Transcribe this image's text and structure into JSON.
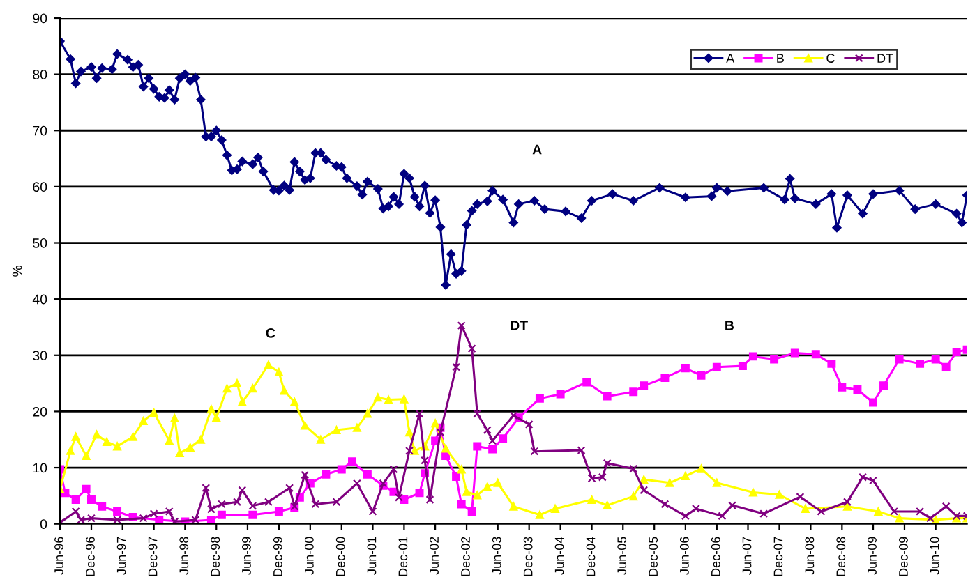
{
  "chart_data": {
    "type": "line",
    "ylabel": "%",
    "xlim": [
      "1996-06",
      "2010-12"
    ],
    "ylim": [
      0,
      90
    ],
    "yticks": [
      0,
      10,
      20,
      30,
      40,
      50,
      60,
      70,
      80,
      90
    ],
    "xticks": [
      {
        "value": "1996-06",
        "label": "Jun-96"
      },
      {
        "value": "1996-12",
        "label": "Dec-96"
      },
      {
        "value": "1997-06",
        "label": "Jun-97"
      },
      {
        "value": "1997-12",
        "label": "Dec-97"
      },
      {
        "value": "1998-06",
        "label": "Jun-98"
      },
      {
        "value": "1998-12",
        "label": "Dec-98"
      },
      {
        "value": "1999-06",
        "label": "Jun-99"
      },
      {
        "value": "1999-12",
        "label": "Dec-99"
      },
      {
        "value": "2000-06",
        "label": "Jun-00"
      },
      {
        "value": "2000-12",
        "label": "Dec-00"
      },
      {
        "value": "2001-06",
        "label": "Jun-01"
      },
      {
        "value": "2001-12",
        "label": "Dec-01"
      },
      {
        "value": "2002-06",
        "label": "Jun-02"
      },
      {
        "value": "2002-12",
        "label": "Dec-02"
      },
      {
        "value": "2003-06",
        "label": "Jun-03"
      },
      {
        "value": "2003-12",
        "label": "Dec-03"
      },
      {
        "value": "2004-06",
        "label": "Jun-04"
      },
      {
        "value": "2004-12",
        "label": "Dec-04"
      },
      {
        "value": "2005-06",
        "label": "Jun-05"
      },
      {
        "value": "2005-12",
        "label": "Dec-05"
      },
      {
        "value": "2006-06",
        "label": "Jun-06"
      },
      {
        "value": "2006-12",
        "label": "Dec-06"
      },
      {
        "value": "2007-06",
        "label": "Jun-07"
      },
      {
        "value": "2007-12",
        "label": "Dec-07"
      },
      {
        "value": "2008-06",
        "label": "Jun-08"
      },
      {
        "value": "2008-12",
        "label": "Dec-08"
      },
      {
        "value": "2009-06",
        "label": "Jun-09"
      },
      {
        "value": "2009-12",
        "label": "Dec-09"
      },
      {
        "value": "2010-06",
        "label": "Jun-10"
      }
    ],
    "grid": "y",
    "legend": "top right",
    "line_style": "solid",
    "annotations": [
      "A",
      "C",
      "DT",
      "B"
    ],
    "series": [
      {
        "name": "A",
        "color": "#000080",
        "marker": "diamond",
        "x": [
          "1996-06",
          "1996-08",
          "1996-09",
          "1996-10",
          "1996-12",
          "1997-01",
          "1997-02",
          "1997-04",
          "1997-05",
          "1997-07",
          "1997-08",
          "1997-09",
          "1997-10",
          "1997-11",
          "1997-12",
          "1998-01",
          "1998-02",
          "1998-03",
          "1998-04",
          "1998-05",
          "1998-06",
          "1998-07",
          "1998-08",
          "1998-09",
          "1998-10",
          "1998-11",
          "1998-12",
          "1999-01",
          "1999-02",
          "1999-03",
          "1999-04",
          "1999-05",
          "1999-07",
          "1999-08",
          "1999-09",
          "1999-11",
          "1999-12",
          "2000-01",
          "2000-02",
          "2000-03",
          "2000-04",
          "2000-05",
          "2000-06",
          "2000-07",
          "2000-08",
          "2000-09",
          "2000-11",
          "2000-12",
          "2001-01",
          "2001-03",
          "2001-04",
          "2001-05",
          "2001-07",
          "2001-08",
          "2001-09",
          "2001-10",
          "2001-11",
          "2001-12",
          "2002-01",
          "2002-02",
          "2002-03",
          "2002-04",
          "2002-05",
          "2002-06",
          "2002-07",
          "2002-08",
          "2002-09",
          "2002-10",
          "2002-11",
          "2002-12",
          "2003-01",
          "2003-02",
          "2003-04",
          "2003-05",
          "2003-07",
          "2003-09",
          "2003-10",
          "2004-01",
          "2004-03",
          "2004-07",
          "2004-10",
          "2004-12",
          "2005-04",
          "2005-08",
          "2006-01",
          "2006-06",
          "2006-11",
          "2006-12",
          "2007-02",
          "2007-09",
          "2008-01",
          "2008-02",
          "2008-03",
          "2008-07",
          "2008-10",
          "2008-11",
          "2009-01",
          "2009-04",
          "2009-06",
          "2009-11",
          "2010-02",
          "2010-06",
          "2010-10",
          "2010-11",
          "2010-12"
        ],
        "values": [
          85.9,
          82.7,
          78.4,
          80.5,
          81.3,
          79.3,
          81.1,
          80.9,
          83.6,
          82.6,
          81.3,
          81.7,
          77.8,
          79.3,
          77.4,
          76.0,
          75.8,
          77.2,
          75.5,
          79.3,
          80.0,
          78.8,
          79.4,
          75.5,
          68.9,
          68.9,
          70.0,
          68.3,
          65.6,
          62.9,
          63.1,
          64.5,
          64.0,
          65.2,
          62.7,
          59.4,
          59.3,
          60.2,
          59.4,
          64.4,
          62.7,
          61.2,
          61.5,
          66.0,
          66.0,
          64.8,
          63.7,
          63.5,
          61.5,
          60.1,
          58.6,
          60.9,
          59.6,
          56.1,
          56.5,
          58.2,
          56.9,
          62.3,
          61.5,
          58.2,
          56.5,
          60.2,
          55.3,
          57.6,
          52.8,
          42.5,
          48.0,
          44.5,
          45.0,
          53.2,
          55.7,
          56.9,
          57.4,
          59.3,
          57.7,
          53.6,
          56.9,
          57.5,
          56.0,
          55.6,
          54.4,
          57.5,
          58.7,
          57.5,
          59.8,
          58.1,
          58.3,
          59.8,
          59.2,
          59.8,
          57.7,
          61.4,
          57.9,
          56.9,
          58.7,
          52.7,
          58.5,
          55.2,
          58.7,
          59.3,
          56.0,
          56.9,
          55.2,
          53.6,
          58.5
        ]
      },
      {
        "name": "B",
        "color": "#ff00ff",
        "marker": "square",
        "x": [
          "1996-06",
          "1996-07",
          "1996-09",
          "1996-11",
          "1996-12",
          "1997-02",
          "1997-05",
          "1997-08",
          "1998-01",
          "1998-06",
          "1998-11",
          "1999-01",
          "1999-07",
          "1999-12",
          "2000-03",
          "2000-04",
          "2000-06",
          "2000-09",
          "2000-12",
          "2001-02",
          "2001-05",
          "2001-08",
          "2001-10",
          "2001-12",
          "2002-03",
          "2002-04",
          "2002-06",
          "2002-07",
          "2002-08",
          "2002-10",
          "2002-11",
          "2003-01",
          "2003-02",
          "2003-05",
          "2003-07",
          "2003-10",
          "2004-02",
          "2004-06",
          "2004-11",
          "2005-03",
          "2005-08",
          "2005-10",
          "2006-02",
          "2006-06",
          "2006-09",
          "2006-12",
          "2007-05",
          "2007-07",
          "2007-11",
          "2008-03",
          "2008-07",
          "2008-10",
          "2008-12",
          "2009-03",
          "2009-06",
          "2009-08",
          "2009-11",
          "2010-03",
          "2010-06",
          "2010-08",
          "2010-10",
          "2010-12"
        ],
        "values": [
          9.7,
          5.5,
          4.3,
          6.2,
          4.3,
          3.1,
          2.2,
          1.2,
          0.7,
          0.4,
          0.7,
          1.6,
          1.6,
          2.2,
          2.9,
          4.7,
          7.2,
          8.8,
          9.7,
          11.1,
          8.8,
          6.8,
          5.7,
          4.3,
          5.5,
          9.0,
          14.8,
          17.1,
          12.1,
          8.4,
          3.5,
          2.2,
          13.8,
          13.3,
          15.2,
          18.9,
          22.3,
          23.1,
          25.2,
          22.7,
          23.5,
          24.6,
          26.0,
          27.7,
          26.4,
          27.9,
          28.1,
          29.8,
          29.3,
          30.4,
          30.2,
          28.5,
          24.3,
          23.9,
          21.6,
          24.6,
          29.3,
          28.5,
          29.3,
          27.9,
          30.6,
          31.0
        ]
      },
      {
        "name": "C",
        "color": "#ffff00",
        "marker": "triangle",
        "x": [
          "1996-06",
          "1996-08",
          "1996-09",
          "1996-11",
          "1997-01",
          "1997-03",
          "1997-05",
          "1997-08",
          "1997-10",
          "1997-12",
          "1998-03",
          "1998-04",
          "1998-05",
          "1998-07",
          "1998-09",
          "1998-11",
          "1998-12",
          "1999-02",
          "1999-04",
          "1999-05",
          "1999-07",
          "1999-10",
          "1999-12",
          "2000-01",
          "2000-03",
          "2000-05",
          "2000-08",
          "2000-11",
          "2001-03",
          "2001-05",
          "2001-07",
          "2001-09",
          "2001-12",
          "2002-01",
          "2002-02",
          "2002-04",
          "2002-06",
          "2002-08",
          "2002-11",
          "2002-12",
          "2003-02",
          "2003-04",
          "2003-06",
          "2003-09",
          "2004-02",
          "2004-05",
          "2004-12",
          "2005-03",
          "2005-08",
          "2005-10",
          "2006-03",
          "2006-06",
          "2006-09",
          "2006-12",
          "2007-07",
          "2007-12",
          "2008-05",
          "2009-01",
          "2009-07",
          "2009-11",
          "2010-06",
          "2010-10",
          "2010-12"
        ],
        "values": [
          6.2,
          13.0,
          15.5,
          12.1,
          15.9,
          14.6,
          13.8,
          15.5,
          18.3,
          19.8,
          14.8,
          18.8,
          12.6,
          13.6,
          15.0,
          20.4,
          18.9,
          24.1,
          25.0,
          21.7,
          24.1,
          28.3,
          27.0,
          23.7,
          21.7,
          17.5,
          15.0,
          16.7,
          17.1,
          19.6,
          22.5,
          22.1,
          22.2,
          16.3,
          13.0,
          13.8,
          17.9,
          13.4,
          9.7,
          5.7,
          5.1,
          6.6,
          7.3,
          3.1,
          1.6,
          2.7,
          4.3,
          3.3,
          4.9,
          7.9,
          7.3,
          8.5,
          9.8,
          7.3,
          5.6,
          5.2,
          2.7,
          3.1,
          2.2,
          1.0,
          0.7,
          1.0,
          1.0
        ]
      },
      {
        "name": "DT",
        "color": "#800080",
        "marker": "cross",
        "x": [
          "1996-06",
          "1996-09",
          "1996-10",
          "1996-12",
          "1997-05",
          "1997-10",
          "1997-12",
          "1998-03",
          "1998-04",
          "1998-08",
          "1998-10",
          "1998-11",
          "1999-01",
          "1999-04",
          "1999-05",
          "1999-07",
          "1999-10",
          "2000-02",
          "2000-03",
          "2000-05",
          "2000-07",
          "2000-11",
          "2001-03",
          "2001-06",
          "2001-08",
          "2001-10",
          "2001-11",
          "2002-01",
          "2002-03",
          "2002-04",
          "2002-05",
          "2002-07",
          "2002-10",
          "2002-11",
          "2003-01",
          "2003-02",
          "2003-04",
          "2003-05",
          "2003-09",
          "2003-12",
          "2004-01",
          "2004-10",
          "2004-12",
          "2005-02",
          "2005-03",
          "2005-08",
          "2005-10",
          "2006-02",
          "2006-06",
          "2006-08",
          "2007-01",
          "2007-03",
          "2007-09",
          "2008-04",
          "2008-08",
          "2009-01",
          "2009-04",
          "2009-06",
          "2009-10",
          "2010-03",
          "2010-05",
          "2010-08",
          "2010-10",
          "2010-12"
        ],
        "values": [
          0.2,
          2.2,
          0.7,
          1.0,
          0.7,
          1.0,
          1.8,
          2.2,
          0.4,
          0.7,
          6.4,
          2.6,
          3.5,
          3.9,
          6.0,
          3.2,
          3.9,
          6.4,
          3.1,
          8.7,
          3.5,
          3.9,
          7.2,
          2.2,
          7.2,
          9.7,
          4.7,
          13.0,
          19.6,
          11.3,
          4.3,
          16.3,
          27.9,
          35.3,
          31.2,
          19.6,
          16.7,
          14.8,
          19.3,
          17.7,
          12.9,
          13.1,
          8.1,
          8.3,
          10.8,
          9.8,
          6.0,
          3.5,
          1.4,
          2.7,
          1.4,
          3.3,
          1.8,
          4.8,
          2.2,
          3.9,
          8.3,
          7.7,
          2.2,
          2.2,
          1.0,
          3.1,
          1.4,
          1.4
        ]
      }
    ]
  }
}
